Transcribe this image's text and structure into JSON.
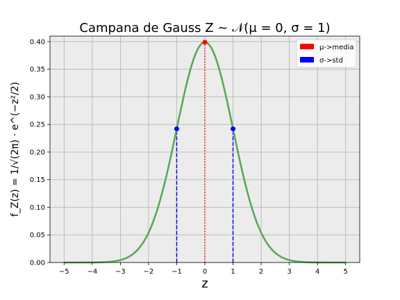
{
  "chart_data": {
    "type": "line",
    "title": "Campana de Gauss Z ~ 𝒩(μ = 0, σ = 1)",
    "xlabel": "z",
    "ylabel": "f_Z(z) = 1/√(2π) · e^(−z²/2)",
    "xlim": [
      -5.5,
      5.5
    ],
    "ylim": [
      0.0,
      0.41
    ],
    "x_ticks": [
      -5,
      -4,
      -3,
      -2,
      -1,
      0,
      1,
      2,
      3,
      4,
      5
    ],
    "x_tick_labels": [
      "−5",
      "−4",
      "−3",
      "−2",
      "−1",
      "0",
      "1",
      "2",
      "3",
      "4",
      "5"
    ],
    "y_ticks": [
      0.0,
      0.05,
      0.1,
      0.15,
      0.2,
      0.25,
      0.3,
      0.35,
      0.4
    ],
    "y_tick_labels": [
      "0.00",
      "0.05",
      "0.10",
      "0.15",
      "0.20",
      "0.25",
      "0.30",
      "0.35",
      "0.40"
    ],
    "grid": true,
    "background": "#ececec",
    "curve": {
      "color": "#5aa85a",
      "x": [
        -5,
        -4.5,
        -4,
        -3.5,
        -3,
        -2.75,
        -2.5,
        -2.25,
        -2,
        -1.75,
        -1.5,
        -1.25,
        -1,
        -0.75,
        -0.5,
        -0.25,
        0,
        0.25,
        0.5,
        0.75,
        1,
        1.25,
        1.5,
        1.75,
        2,
        2.25,
        2.5,
        2.75,
        3,
        3.5,
        4,
        4.5,
        5
      ],
      "y": [
        0.0,
        0.0,
        0.0001,
        0.0009,
        0.0044,
        0.0091,
        0.0175,
        0.0317,
        0.054,
        0.0863,
        0.1295,
        0.1826,
        0.242,
        0.3011,
        0.3521,
        0.3867,
        0.3989,
        0.3867,
        0.3521,
        0.3011,
        0.242,
        0.1826,
        0.1295,
        0.0863,
        0.054,
        0.0317,
        0.0175,
        0.0091,
        0.0044,
        0.0009,
        0.0001,
        0.0,
        0.0
      ]
    },
    "mean_marker": {
      "x": 0,
      "y": 0.3989,
      "color": "#ff0000"
    },
    "std_markers": [
      {
        "x": -1,
        "y": 0.242
      },
      {
        "x": 1,
        "y": 0.242
      }
    ],
    "std_color": "#0000ff",
    "legend": {
      "placement": "top-right",
      "entries": [
        {
          "label": "μ->media",
          "color": "#ff0000"
        },
        {
          "label": "σ->std",
          "color": "#0000ff"
        }
      ]
    }
  }
}
